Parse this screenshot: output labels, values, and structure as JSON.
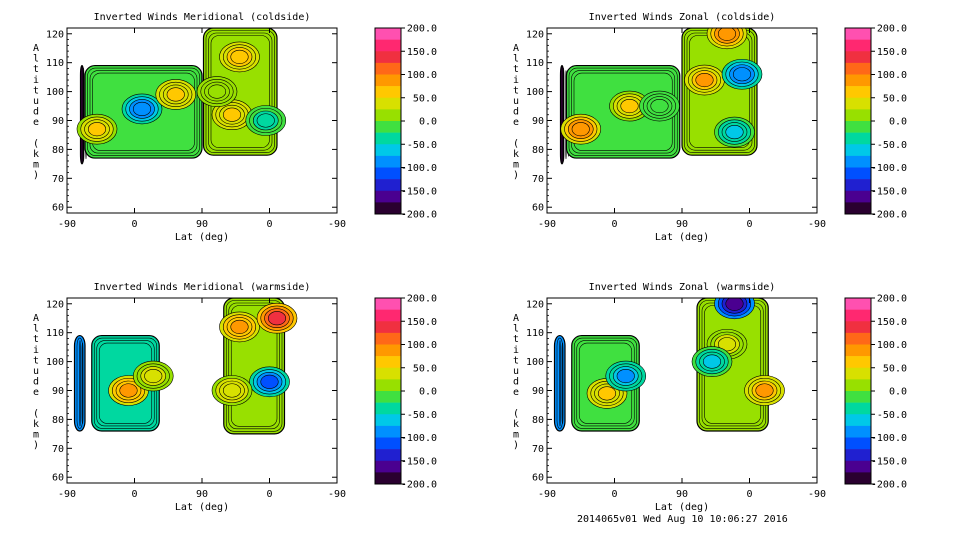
{
  "footer": "2014065v01 Wed Aug 10 10:06:27 2016",
  "chart_data": [
    {
      "type": "heatmap",
      "title": "Inverted Winds Meridional (coldside)",
      "xlabel": "Lat (deg)",
      "ylabel": "Altitude (km)",
      "x_tick_labels": [
        "-90",
        "0",
        "90",
        "0",
        "-90"
      ],
      "y_ticks": [
        60,
        70,
        80,
        90,
        100,
        110,
        120
      ],
      "ylim": [
        58,
        122
      ],
      "colorbar_ticks": [
        "200.0",
        "150.0",
        "100.0",
        "50.0",
        "0.0",
        "-50.0",
        "-100.0",
        "-150.0",
        "-200.0"
      ],
      "zlim": [
        -200,
        200
      ],
      "patches": [
        {
          "x": [
            -72,
            -68
          ],
          "y": [
            75,
            109
          ],
          "value": -190
        },
        {
          "x": [
            -66,
            90
          ],
          "y": [
            77,
            109
          ],
          "value": -10
        },
        {
          "x": [
            92,
            190
          ],
          "y": [
            78,
            122
          ],
          "value": 20
        }
      ],
      "features": [
        {
          "x": -50,
          "y": 87,
          "value": 60
        },
        {
          "x": 10,
          "y": 94,
          "value": -110
        },
        {
          "x": 55,
          "y": 99,
          "value": 70
        },
        {
          "x": 140,
          "y": 112,
          "value": 80
        },
        {
          "x": 130,
          "y": 92,
          "value": 70
        },
        {
          "x": 175,
          "y": 90,
          "value": -40
        },
        {
          "x": 110,
          "y": 100,
          "value": 0
        }
      ]
    },
    {
      "type": "heatmap",
      "title": "Inverted Winds Zonal (coldside)",
      "xlabel": "Lat (deg)",
      "ylabel": "Altitude (km)",
      "x_tick_labels": [
        "-90",
        "0",
        "90",
        "0",
        "-90"
      ],
      "y_ticks": [
        60,
        70,
        80,
        90,
        100,
        110,
        120
      ],
      "ylim": [
        58,
        122
      ],
      "colorbar_ticks": [
        "200.0",
        "150.0",
        "100.0",
        "50.0",
        "0.0",
        "-50.0",
        "-100.0",
        "-150.0",
        "-200.0"
      ],
      "zlim": [
        -200,
        200
      ],
      "patches": [
        {
          "x": [
            -72,
            -68
          ],
          "y": [
            75,
            109
          ],
          "value": -190
        },
        {
          "x": [
            -64,
            87
          ],
          "y": [
            77,
            109
          ],
          "value": -10
        },
        {
          "x": [
            90,
            190
          ],
          "y": [
            78,
            122
          ],
          "value": 10
        }
      ],
      "features": [
        {
          "x": -45,
          "y": 87,
          "value": 110
        },
        {
          "x": 20,
          "y": 95,
          "value": 60
        },
        {
          "x": 60,
          "y": 95,
          "value": -20
        },
        {
          "x": 120,
          "y": 104,
          "value": 90
        },
        {
          "x": 170,
          "y": 106,
          "value": -110
        },
        {
          "x": 150,
          "y": 120,
          "value": 110
        },
        {
          "x": 160,
          "y": 86,
          "value": -60
        }
      ]
    },
    {
      "type": "heatmap",
      "title": "Inverted Winds Meridional (warmside)",
      "xlabel": "Lat (deg)",
      "ylabel": "Altitude (km)",
      "x_tick_labels": [
        "-90",
        "0",
        "90",
        "0",
        "-90"
      ],
      "y_ticks": [
        60,
        70,
        80,
        90,
        100,
        110,
        120
      ],
      "ylim": [
        58,
        122
      ],
      "colorbar_ticks": [
        "200.0",
        "150.0",
        "100.0",
        "50.0",
        "0.0",
        "-50.0",
        "-100.0",
        "-150.0",
        "-200.0"
      ],
      "zlim": [
        -200,
        200
      ],
      "patches": [
        {
          "x": [
            -80,
            -66
          ],
          "y": [
            76,
            109
          ],
          "value": -80
        },
        {
          "x": [
            -57,
            33
          ],
          "y": [
            76,
            109
          ],
          "value": -30
        },
        {
          "x": [
            119,
            200
          ],
          "y": [
            75,
            122
          ],
          "value": 10
        }
      ],
      "features": [
        {
          "x": -8,
          "y": 90,
          "value": 100
        },
        {
          "x": 25,
          "y": 95,
          "value": 40
        },
        {
          "x": 140,
          "y": 112,
          "value": 100
        },
        {
          "x": 190,
          "y": 115,
          "value": 170
        },
        {
          "x": 180,
          "y": 93,
          "value": -120
        },
        {
          "x": 130,
          "y": 90,
          "value": 50
        }
      ]
    },
    {
      "type": "heatmap",
      "title": "Inverted Winds Zonal (warmside)",
      "xlabel": "Lat (deg)",
      "ylabel": "Altitude (km)",
      "x_tick_labels": [
        "-90",
        "0",
        "90",
        "0",
        "-90"
      ],
      "y_ticks": [
        60,
        70,
        80,
        90,
        100,
        110,
        120
      ],
      "ylim": [
        58,
        122
      ],
      "colorbar_ticks": [
        "200.0",
        "150.0",
        "100.0",
        "50.0",
        "0.0",
        "-50.0",
        "-100.0",
        "-150.0",
        "-200.0"
      ],
      "zlim": [
        -200,
        200
      ],
      "patches": [
        {
          "x": [
            -80,
            -66
          ],
          "y": [
            76,
            109
          ],
          "value": -90
        },
        {
          "x": [
            -57,
            33
          ],
          "y": [
            76,
            109
          ],
          "value": -10
        },
        {
          "x": [
            110,
            205
          ],
          "y": [
            76,
            122
          ],
          "value": 0
        }
      ],
      "features": [
        {
          "x": -10,
          "y": 89,
          "value": 70
        },
        {
          "x": 15,
          "y": 95,
          "value": -90
        },
        {
          "x": 150,
          "y": 106,
          "value": 40
        },
        {
          "x": 200,
          "y": 90,
          "value": 90
        },
        {
          "x": 130,
          "y": 100,
          "value": -60
        },
        {
          "x": 160,
          "y": 120,
          "value": -190
        }
      ]
    }
  ]
}
